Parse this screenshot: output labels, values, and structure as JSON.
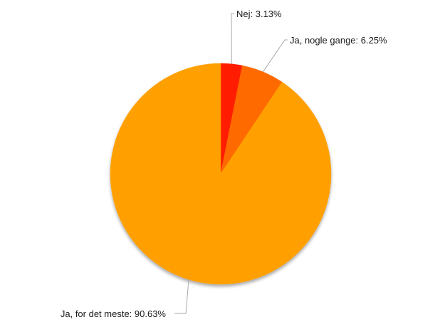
{
  "chart_data": {
    "type": "pie",
    "title": "",
    "start_angle_deg": 0,
    "direction": "clockwise",
    "shadow": true,
    "slices": [
      {
        "label": "Nej: 3.13%",
        "value": 3.13,
        "color": "#ff1a00"
      },
      {
        "label": "Ja, nogle gange: 6.25%",
        "value": 6.25,
        "color": "#ff6a00"
      },
      {
        "label": "Ja, for det meste: 90.63%",
        "value": 90.63,
        "color": "#ffa000"
      }
    ]
  }
}
